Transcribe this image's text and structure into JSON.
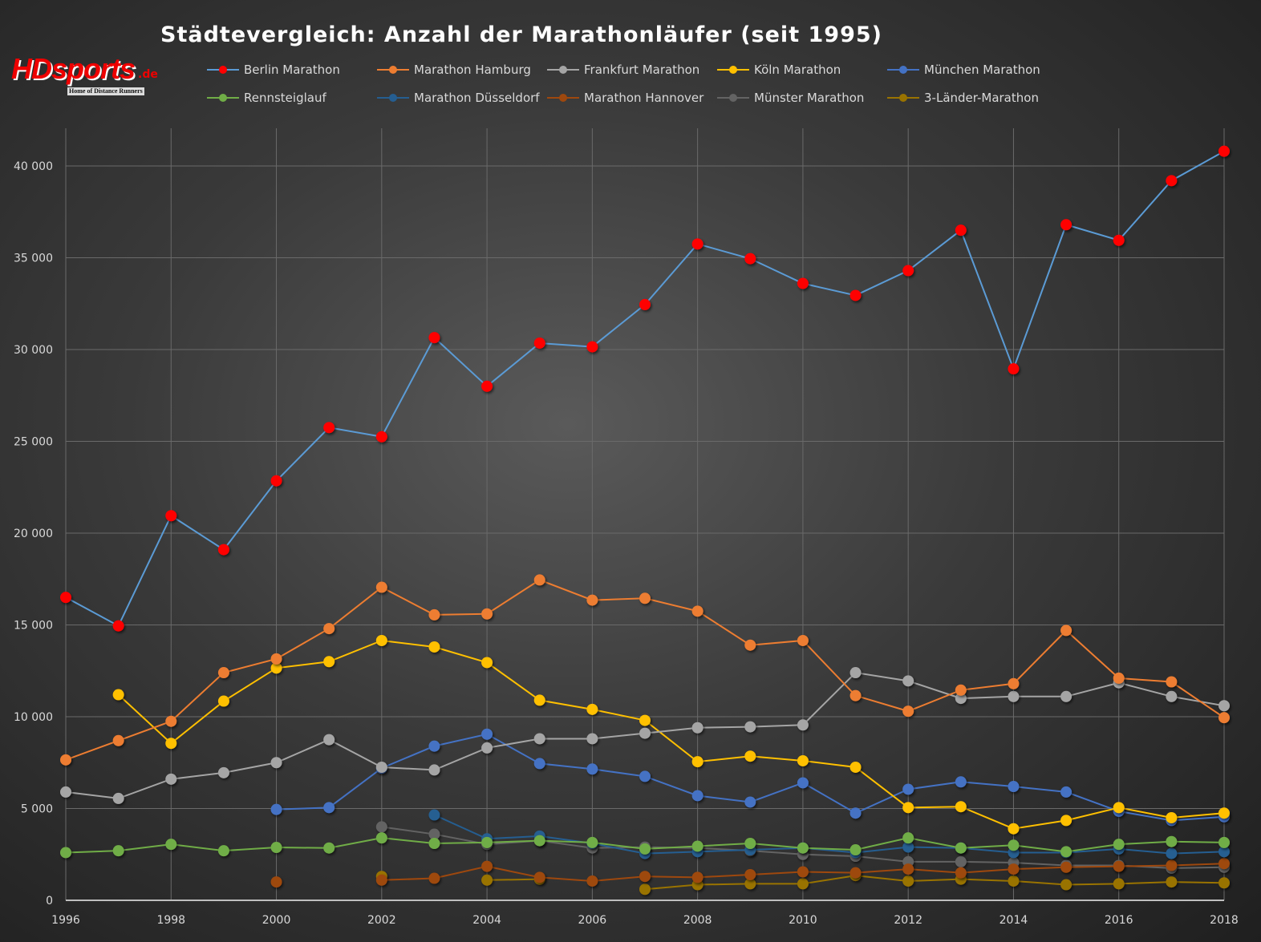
{
  "logo": {
    "text": "HDsports",
    "suffix": ".de",
    "tagline": "Home of Distance Runners"
  },
  "chart_data": {
    "type": "line",
    "title": "Städtevergleich: Anzahl der Marathonläufer (seit 1995)",
    "xlabel": "",
    "ylabel": "",
    "x": [
      1996,
      1997,
      1998,
      1999,
      2000,
      2001,
      2002,
      2003,
      2004,
      2005,
      2006,
      2007,
      2008,
      2009,
      2010,
      2011,
      2012,
      2013,
      2014,
      2015,
      2016,
      2017,
      2018
    ],
    "x_ticks": [
      "1996",
      "1998",
      "2000",
      "2002",
      "2004",
      "2006",
      "2008",
      "2010",
      "2012",
      "2014",
      "2016",
      "2018"
    ],
    "y_ticks": [
      "0",
      "5 000",
      "10 000",
      "15 000",
      "20 000",
      "25 000",
      "30 000",
      "35 000",
      "40 000"
    ],
    "ylim": [
      0,
      42000
    ],
    "grid": true,
    "legend_position": "top",
    "series": [
      {
        "name": "Berlin Marathon",
        "line_color": "#5b9bd5",
        "marker_color": "#ff0000",
        "values": [
          16500,
          14950,
          20950,
          19100,
          22850,
          25750,
          25250,
          30650,
          28000,
          30350,
          30150,
          32450,
          35750,
          34950,
          33600,
          32950,
          34300,
          36500,
          28950,
          36800,
          35950,
          39200,
          40800
        ]
      },
      {
        "name": "Marathon Hamburg",
        "line_color": "#ed7d31",
        "marker_color": "#ed7d31",
        "values": [
          7650,
          8700,
          9750,
          12400,
          13150,
          14800,
          17050,
          15550,
          15600,
          17450,
          16350,
          16450,
          15750,
          13900,
          14150,
          11150,
          10300,
          11450,
          11800,
          14700,
          12100,
          11900,
          9950
        ]
      },
      {
        "name": "Frankfurt Marathon",
        "line_color": "#a5a5a5",
        "marker_color": "#a5a5a5",
        "values": [
          5900,
          5550,
          6600,
          6950,
          7500,
          8750,
          7250,
          7100,
          8300,
          8800,
          8800,
          9100,
          9400,
          9450,
          9550,
          12400,
          11950,
          11000,
          11100,
          11100,
          11850,
          11100,
          10600
        ]
      },
      {
        "name": "Köln Marathon",
        "line_color": "#ffc000",
        "marker_color": "#ffc000",
        "values": [
          null,
          11200,
          8550,
          10850,
          12650,
          13000,
          14150,
          13800,
          12950,
          10900,
          10400,
          9800,
          7550,
          7850,
          7600,
          7250,
          5050,
          5100,
          3900,
          4350,
          5050,
          4500,
          4750
        ]
      },
      {
        "name": "München Marathon",
        "line_color": "#4472c4",
        "marker_color": "#4472c4",
        "values": [
          null,
          null,
          null,
          null,
          4950,
          5050,
          7200,
          8400,
          9050,
          7450,
          7150,
          6750,
          5700,
          5350,
          6400,
          4750,
          6050,
          6450,
          6200,
          5900,
          4850,
          4350,
          4550
        ]
      },
      {
        "name": "Rennsteiglauf",
        "line_color": "#70ad47",
        "marker_color": "#70ad47",
        "values": [
          2600,
          2700,
          3050,
          2700,
          2880,
          2850,
          3400,
          3100,
          3150,
          3250,
          3150,
          2800,
          2950,
          3100,
          2850,
          2750,
          3400,
          2850,
          3000,
          2650,
          3050,
          3200,
          3150
        ]
      },
      {
        "name": "Marathon Düsseldorf",
        "line_color": "#255e91",
        "marker_color": "#255e91",
        "values": [
          null,
          null,
          null,
          null,
          null,
          null,
          null,
          4650,
          3350,
          3500,
          3100,
          2550,
          2650,
          2750,
          2850,
          2600,
          2900,
          2850,
          2600,
          2600,
          2800,
          2550,
          2650
        ]
      },
      {
        "name": "Marathon Hannover",
        "line_color": "#9e480e",
        "marker_color": "#9e480e",
        "values": [
          null,
          null,
          null,
          null,
          1000,
          null,
          1100,
          1200,
          1850,
          1250,
          1050,
          1300,
          1250,
          1400,
          1550,
          1500,
          1700,
          1500,
          1700,
          1800,
          1850,
          1900,
          2000
        ]
      },
      {
        "name": "Münster Marathon",
        "line_color": "#636363",
        "marker_color": "#636363",
        "values": [
          null,
          null,
          null,
          null,
          null,
          null,
          4000,
          3600,
          3050,
          3250,
          2850,
          2900,
          2850,
          2700,
          2500,
          2400,
          2100,
          2100,
          2050,
          1900,
          1900,
          1750,
          1800
        ]
      },
      {
        "name": "3-Länder-Marathon",
        "line_color": "#997300",
        "marker_color": "#997300",
        "values": [
          null,
          null,
          null,
          null,
          null,
          null,
          1300,
          null,
          1100,
          1150,
          null,
          600,
          850,
          900,
          900,
          1350,
          1050,
          1150,
          1050,
          850,
          900,
          1000,
          950
        ]
      }
    ]
  }
}
